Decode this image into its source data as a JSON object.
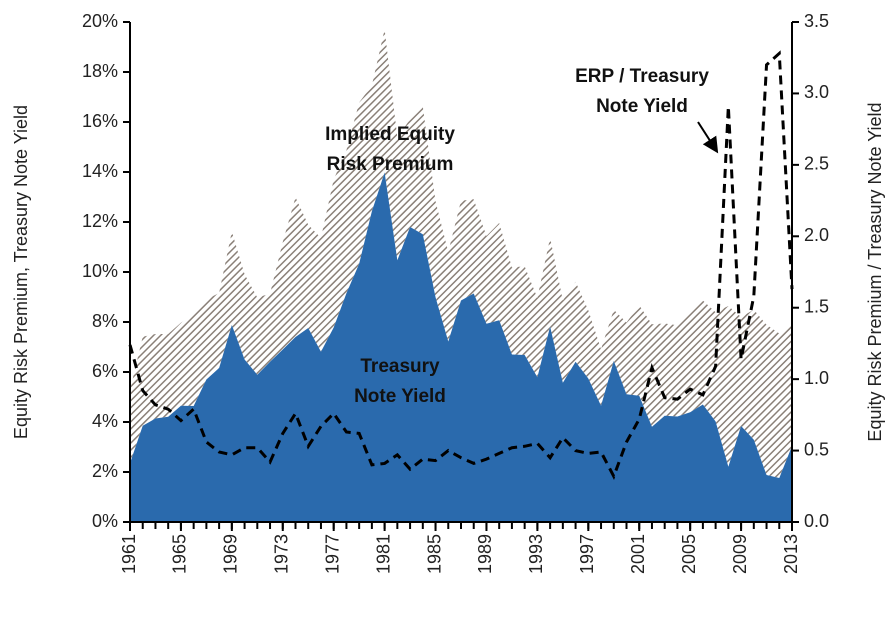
{
  "chart_data": {
    "type": "stacked-area-line",
    "y_label": "Equity Risk Premium, Treasury Note Yield",
    "y2_label": "Equity Risk Premium / Treasury Note Yield",
    "x": [
      1961,
      1962,
      1963,
      1964,
      1965,
      1966,
      1967,
      1968,
      1969,
      1970,
      1971,
      1972,
      1973,
      1974,
      1975,
      1976,
      1977,
      1978,
      1979,
      1980,
      1981,
      1982,
      1983,
      1984,
      1985,
      1986,
      1987,
      1988,
      1989,
      1990,
      1991,
      1992,
      1993,
      1994,
      1995,
      1996,
      1997,
      1998,
      1999,
      2000,
      2001,
      2002,
      2003,
      2004,
      2005,
      2006,
      2007,
      2008,
      2009,
      2010,
      2011,
      2012,
      2013
    ],
    "xlim": [
      1961,
      2013
    ],
    "xticks": [
      1961,
      1965,
      1969,
      1973,
      1977,
      1981,
      1985,
      1989,
      1993,
      1997,
      2001,
      2005,
      2009,
      2013
    ],
    "ylim": [
      0,
      20
    ],
    "yticks": [
      {
        "value": 0,
        "label": "0%"
      },
      {
        "value": 2,
        "label": "2%"
      },
      {
        "value": 4,
        "label": "4%"
      },
      {
        "value": 6,
        "label": "6%"
      },
      {
        "value": 8,
        "label": "8%"
      },
      {
        "value": 10,
        "label": "10%"
      },
      {
        "value": 12,
        "label": "12%"
      },
      {
        "value": 14,
        "label": "14%"
      },
      {
        "value": 16,
        "label": "16%"
      },
      {
        "value": 18,
        "label": "18%"
      },
      {
        "value": 20,
        "label": "20%"
      }
    ],
    "y2lim": [
      0,
      3.5
    ],
    "y2ticks": [
      {
        "value": 0,
        "label": "0.0"
      },
      {
        "value": 0.5,
        "label": "0.5"
      },
      {
        "value": 1,
        "label": "1.0"
      },
      {
        "value": 1.5,
        "label": "1.5"
      },
      {
        "value": 2,
        "label": "2.0"
      },
      {
        "value": 2.5,
        "label": "2.5"
      },
      {
        "value": 3,
        "label": "3.0"
      },
      {
        "value": 3.5,
        "label": "3.5"
      }
    ],
    "series": [
      {
        "color": "#2a6aad",
        "values": [
          2.35,
          3.85,
          4.14,
          4.21,
          4.65,
          4.64,
          5.7,
          6.16,
          7.88,
          6.5,
          5.89,
          6.41,
          6.9,
          7.4,
          7.76,
          6.81,
          7.78,
          9.15,
          10.33,
          12.43,
          13.98,
          10.47,
          11.8,
          11.51,
          8.99,
          7.22,
          8.86,
          9.14,
          7.93,
          8.07,
          6.7,
          6.68,
          5.79,
          7.82,
          5.57,
          6.41,
          5.74,
          4.65,
          6.44,
          5.11,
          5.05,
          3.81,
          4.25,
          4.22,
          4.39,
          4.7,
          4.02,
          2.21,
          3.84,
          3.29,
          1.88,
          1.76,
          3.04
        ]
      },
      {
        "color": "#8a8078",
        "values": [
          2.92,
          3.56,
          3.38,
          3.31,
          3.32,
          3.68,
          3.2,
          3.0,
          3.74,
          3.41,
          3.09,
          2.72,
          4.3,
          5.59,
          4.13,
          4.55,
          5.92,
          5.72,
          6.45,
          5.03,
          5.73,
          4.9,
          4.31,
          5.11,
          3.84,
          3.58,
          3.99,
          3.77,
          3.51,
          3.89,
          3.48,
          3.55,
          3.17,
          3.55,
          3.29,
          3.2,
          2.73,
          2.26,
          2.05,
          2.87,
          3.62,
          4.1,
          3.69,
          3.65,
          4.08,
          4.16,
          4.37,
          6.43,
          4.36,
          5.2,
          6.01,
          5.78,
          4.96
        ]
      },
      {
        "color": "#000000",
        "axis": "y2",
        "values": [
          1.24,
          0.92,
          0.82,
          0.79,
          0.71,
          0.79,
          0.56,
          0.49,
          0.47,
          0.52,
          0.52,
          0.42,
          0.62,
          0.76,
          0.53,
          0.67,
          0.76,
          0.63,
          0.62,
          0.4,
          0.41,
          0.47,
          0.37,
          0.44,
          0.43,
          0.5,
          0.45,
          0.41,
          0.44,
          0.48,
          0.52,
          0.53,
          0.55,
          0.45,
          0.59,
          0.5,
          0.48,
          0.49,
          0.32,
          0.56,
          0.72,
          1.08,
          0.87,
          0.86,
          0.93,
          0.89,
          1.09,
          2.91,
          1.14,
          1.58,
          3.2,
          3.28,
          1.63
        ]
      }
    ],
    "annotations": [
      {
        "lines": [
          "Implied Equity",
          "Risk Premium"
        ]
      },
      {
        "lines": [
          "Treasury",
          "Note Yield"
        ]
      },
      {
        "lines": [
          "ERP / Treasury",
          "Note Yield"
        ]
      }
    ]
  }
}
